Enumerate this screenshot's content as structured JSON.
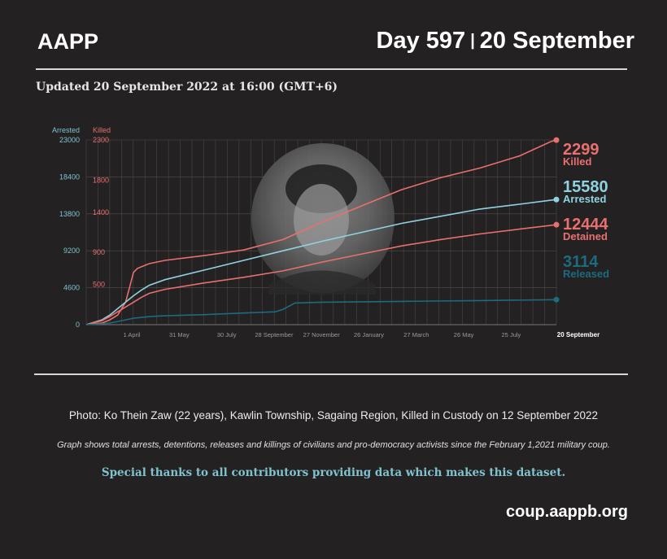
{
  "header": {
    "brand": "AAPP",
    "day": "Day 597",
    "separator": "|",
    "date": "20 September",
    "updated": "Updated 20 September 2022 at 16:00 (GMT+6)"
  },
  "chart_data": {
    "type": "line",
    "left_axis": {
      "label": "Arrested",
      "ticks": [
        0,
        4600,
        9200,
        13800,
        18400,
        23000
      ],
      "range": [
        0,
        23000
      ]
    },
    "right_axis": {
      "label": "Killed",
      "ticks": [
        "500",
        "900",
        "1400",
        "1800",
        "2300"
      ],
      "range": [
        0,
        2300
      ]
    },
    "x_ticks": [
      "1 April",
      "31 May",
      "30 July",
      "28 September",
      "27 November",
      "26 January",
      "27 March",
      "26 May",
      "25 July"
    ],
    "x_end_label": "20 September",
    "x_range": [
      0,
      597
    ],
    "grid": true,
    "series": [
      {
        "name": "Killed",
        "axis": "right",
        "color": "#e8706e",
        "final": "2299",
        "x": [
          0,
          20,
          30,
          40,
          50,
          55,
          60,
          65,
          70,
          80,
          100,
          150,
          200,
          250,
          300,
          350,
          400,
          450,
          500,
          550,
          590,
          597
        ],
        "y": [
          0,
          20,
          60,
          120,
          280,
          460,
          650,
          700,
          720,
          760,
          800,
          860,
          930,
          1060,
          1280,
          1480,
          1680,
          1830,
          1950,
          2100,
          2280,
          2299
        ]
      },
      {
        "name": "Arrested",
        "axis": "left",
        "color": "#8fd3e0",
        "final": "15580",
        "x": [
          0,
          20,
          30,
          40,
          50,
          60,
          70,
          80,
          100,
          150,
          200,
          250,
          300,
          350,
          400,
          450,
          500,
          550,
          597
        ],
        "y": [
          0,
          600,
          1200,
          2000,
          2800,
          3600,
          4300,
          4900,
          5600,
          6800,
          8000,
          9200,
          10400,
          11500,
          12600,
          13500,
          14400,
          15000,
          15580
        ]
      },
      {
        "name": "Detained",
        "axis": "left",
        "color": "#e8706e",
        "final": "12444",
        "x": [
          0,
          20,
          30,
          40,
          50,
          60,
          70,
          80,
          100,
          150,
          200,
          250,
          300,
          350,
          400,
          450,
          500,
          550,
          597
        ],
        "y": [
          0,
          500,
          1000,
          1600,
          2200,
          2800,
          3400,
          3900,
          4400,
          5200,
          5900,
          6700,
          7800,
          8800,
          9800,
          10600,
          11300,
          11900,
          12444
        ]
      },
      {
        "name": "Released",
        "axis": "left",
        "color": "#1c6b7e",
        "final": "3114",
        "x": [
          0,
          20,
          30,
          40,
          50,
          60,
          70,
          80,
          100,
          150,
          200,
          240,
          250,
          265,
          300,
          400,
          500,
          597
        ],
        "y": [
          0,
          100,
          200,
          400,
          600,
          800,
          900,
          1000,
          1100,
          1250,
          1450,
          1600,
          1900,
          2700,
          2800,
          2900,
          3000,
          3114
        ]
      }
    ]
  },
  "photo": {
    "alt": "portrait photo"
  },
  "caption": "Photo: Ko Thein Zaw (22 years), Kawlin Township, Sagaing Region, Killed in Custody on 12 September 2022",
  "note": "Graph shows total arrests, detentions, releases and killings of civilians and pro-democracy activists since the February 1,2021 military coup.",
  "thanks": "Special thanks to all contributors providing data which makes this dataset.",
  "url": "coup.aappb.org"
}
